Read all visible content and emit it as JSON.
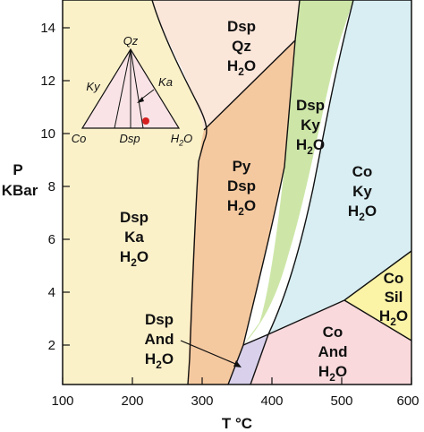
{
  "axes": {
    "x_title": "T °C",
    "y_title_line1": "P",
    "y_title_line2": "KBar",
    "x_range": [
      100,
      600
    ],
    "y_range": [
      0.4,
      15
    ],
    "x_ticks": [
      "100",
      "200",
      "300",
      "400",
      "500",
      "600"
    ],
    "y_ticks": [
      "2",
      "4",
      "6",
      "8",
      "10",
      "12",
      "14"
    ]
  },
  "fields": [
    {
      "id": "dsp-ka-h2o",
      "lines": [
        "Dsp",
        "Ka",
        "H2O"
      ],
      "color": "#fbf1c9"
    },
    {
      "id": "dsp-qz-h2o",
      "lines": [
        "Dsp",
        "Qz",
        "H2O"
      ],
      "color": "#fbe6da"
    },
    {
      "id": "py-dsp-h2o",
      "lines": [
        "Py",
        "Dsp",
        "H2O"
      ],
      "color": "#f5c9a0"
    },
    {
      "id": "dsp-ky-h2o",
      "lines": [
        "Dsp",
        "Ky",
        "H2O"
      ],
      "color": "#cde6a8"
    },
    {
      "id": "co-ky-h2o",
      "lines": [
        "Co",
        "Ky",
        "H2O"
      ],
      "color": "#d8eef3"
    },
    {
      "id": "co-sil-h2o",
      "lines": [
        "Co",
        "Sil",
        "H2O"
      ],
      "color": "#fbf3a6"
    },
    {
      "id": "co-and-h2o",
      "lines": [
        "Co",
        "And",
        "H2O"
      ],
      "color": "#f9d9dc"
    },
    {
      "id": "dsp-and-h2o",
      "lines": [
        "Dsp",
        "And",
        "H2O"
      ],
      "color": "#d9d1ec"
    }
  ],
  "ternary": {
    "labels": {
      "top": "Qz",
      "left": "Co",
      "bottom_mid": "Dsp",
      "right": "H2O",
      "left_edge": "Ky",
      "right_edge": "Ka"
    },
    "fill": "#f9e3e6",
    "point_color": "#d62020"
  }
}
